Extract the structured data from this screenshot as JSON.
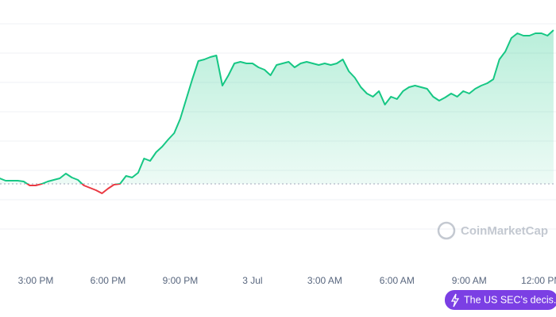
{
  "chart_data": {
    "type": "line",
    "categories": [
      null,
      null,
      null,
      null,
      null,
      null,
      "3:00 PM",
      null,
      null,
      null,
      null,
      null,
      null,
      null,
      null,
      null,
      null,
      null,
      "6:00 PM",
      null,
      null,
      null,
      null,
      null,
      null,
      null,
      null,
      null,
      null,
      null,
      "9:00 PM",
      null,
      null,
      null,
      null,
      null,
      null,
      null,
      null,
      null,
      null,
      null,
      "3 Jul",
      null,
      null,
      null,
      null,
      null,
      null,
      null,
      null,
      null,
      null,
      null,
      "3:00 AM",
      null,
      null,
      null,
      null,
      null,
      null,
      null,
      null,
      null,
      null,
      null,
      "6:00 AM",
      null,
      null,
      null,
      null,
      null,
      null,
      null,
      null,
      null,
      null,
      null,
      "9:00 AM",
      null,
      null,
      null,
      null,
      null,
      null,
      null,
      null,
      null,
      null,
      null,
      "12:00 PM",
      null,
      null
    ],
    "series": [
      {
        "color": "#16c784",
        "down_color": "#ea3943",
        "values": [
          75,
          72,
          72,
          72,
          71,
          66,
          66,
          68,
          71,
          73,
          75,
          81,
          76,
          73,
          66,
          63,
          60,
          56,
          62,
          67,
          68,
          78,
          76,
          82,
          100,
          97,
          108,
          115,
          124,
          132,
          150,
          175,
          200,
          223,
          225,
          228,
          230,
          192,
          205,
          220,
          222,
          220,
          220,
          215,
          212,
          205,
          218,
          220,
          222,
          215,
          220,
          222,
          220,
          218,
          220,
          218,
          220,
          225,
          210,
          202,
          190,
          182,
          178,
          185,
          168,
          178,
          175,
          185,
          190,
          192,
          190,
          188,
          178,
          173,
          177,
          182,
          178,
          185,
          182,
          188,
          192,
          195,
          200,
          225,
          235,
          252,
          258,
          255,
          255,
          258,
          258,
          255,
          262
        ]
      }
    ],
    "reference_line": 68,
    "ylim": [
      0,
      300
    ],
    "watermark": "CoinMarketCap",
    "annotation": "The US SEC's decis..."
  }
}
